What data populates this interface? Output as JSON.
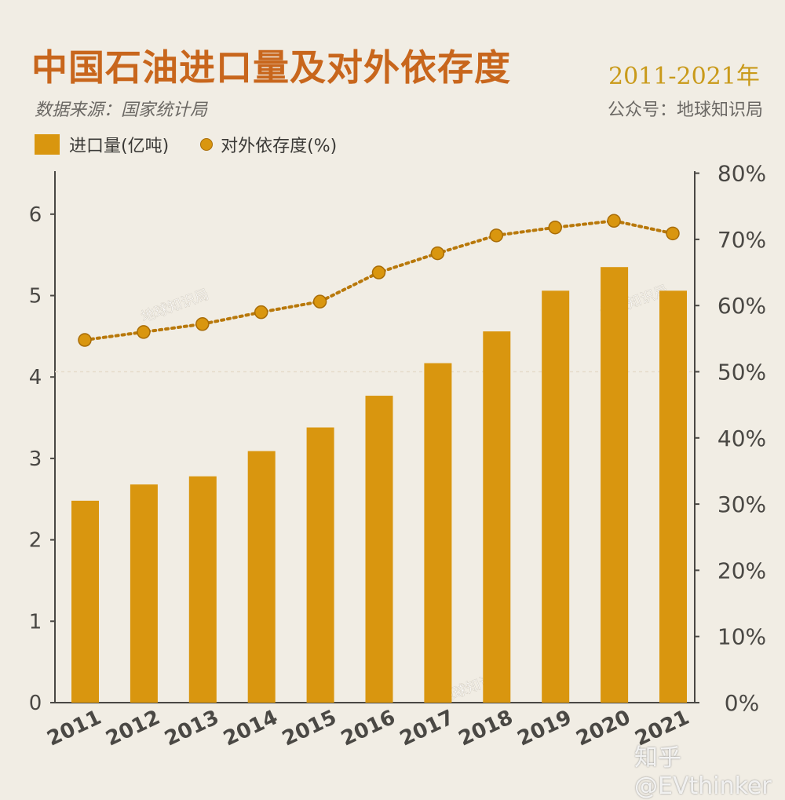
{
  "header": {
    "title": "中国石油进口量及对外依存度",
    "title_years": "2011-2021年",
    "source": "数据来源：国家统计局",
    "account": "公众号：地球知识局"
  },
  "legend": {
    "bar_label": "进口量(亿吨)",
    "line_label": "对外依存度(%)"
  },
  "watermarks": {
    "chart_stamp": "地球知识局",
    "bottom": "知乎 @EVthinker"
  },
  "colors": {
    "bar": "#d9960f",
    "line": "#c98a10",
    "axis": "#4a4844",
    "background": "#f1ede4"
  },
  "chart_data": {
    "type": "bar+line",
    "title": "中国石油进口量及对外依存度",
    "categories": [
      "2011",
      "2012",
      "2013",
      "2014",
      "2015",
      "2016",
      "2017",
      "2018",
      "2019",
      "2020",
      "2021"
    ],
    "series": [
      {
        "name": "进口量(亿吨)",
        "type": "bar",
        "axis": "left",
        "values": [
          2.48,
          2.68,
          2.78,
          3.09,
          3.38,
          3.77,
          4.17,
          4.56,
          5.06,
          5.35,
          5.06
        ]
      },
      {
        "name": "对外依存度(%)",
        "type": "line",
        "style": "dotted",
        "axis": "right",
        "values": [
          54.8,
          56.0,
          57.2,
          59.0,
          60.6,
          65.0,
          67.9,
          70.6,
          71.8,
          72.8,
          70.9
        ]
      }
    ],
    "left_axis": {
      "ylim": [
        0,
        6.5
      ],
      "ticks": [
        "0",
        "1",
        "2",
        "3",
        "4",
        "5",
        "6"
      ]
    },
    "right_axis": {
      "ylim": [
        0,
        80
      ],
      "ticks": [
        "0%",
        "10%",
        "20%",
        "30%",
        "40%",
        "50%",
        "60%",
        "70%",
        "80%"
      ]
    },
    "grid": false,
    "legend_position": "top-left"
  }
}
